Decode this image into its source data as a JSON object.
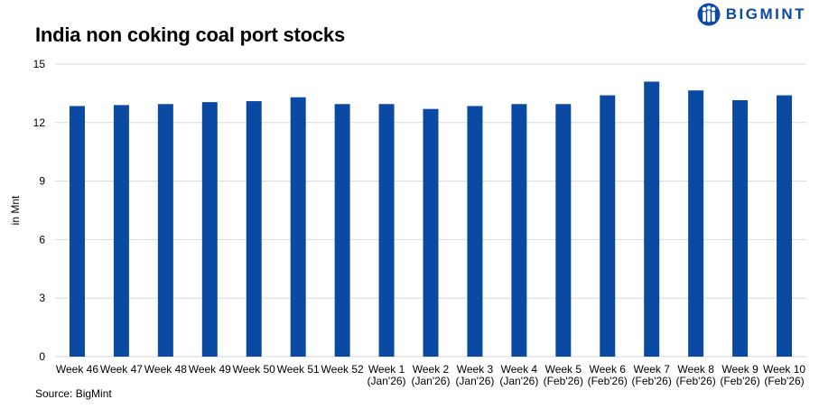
{
  "header": {
    "title": "India non coking coal port stocks",
    "brand": "BIGMINT"
  },
  "footer": {
    "source": "Source: BigMint"
  },
  "colors": {
    "bar": "#0b4aa2",
    "grid": "#d9d9d9",
    "brand": "#0b4aa2"
  },
  "icons": {
    "logo": "bigmint-people-logo-icon"
  },
  "chart_data": {
    "type": "bar",
    "title": "India non coking coal port stocks",
    "xlabel": "",
    "ylabel": "in Mnt",
    "ylim": [
      0,
      15
    ],
    "yticks": [
      0,
      3,
      6,
      9,
      12,
      15
    ],
    "grid": true,
    "legend": "none",
    "categories": [
      [
        "Week 46"
      ],
      [
        "Week 47"
      ],
      [
        "Week 48"
      ],
      [
        "Week 49"
      ],
      [
        "Week 50"
      ],
      [
        "Week 51"
      ],
      [
        "Week 52"
      ],
      [
        "Week 1",
        "(Jan'26)"
      ],
      [
        "Week 2",
        "(Jan'26)"
      ],
      [
        "Week 3",
        "(Jan'26)"
      ],
      [
        "Week 4",
        "(Jan'26)"
      ],
      [
        "Week 5",
        "(Feb'26)"
      ],
      [
        "Week 6",
        "(Feb'26)"
      ],
      [
        "Week 7",
        "(Feb'26)"
      ],
      [
        "Week 8",
        "(Feb'26)"
      ],
      [
        "Week 9",
        "(Feb'26)"
      ],
      [
        "Week 10",
        "(Feb'26)"
      ]
    ],
    "values": [
      12.85,
      12.9,
      12.95,
      13.05,
      13.1,
      13.3,
      12.95,
      12.95,
      12.7,
      12.85,
      12.95,
      12.95,
      13.4,
      14.1,
      13.65,
      13.15,
      13.4
    ]
  }
}
